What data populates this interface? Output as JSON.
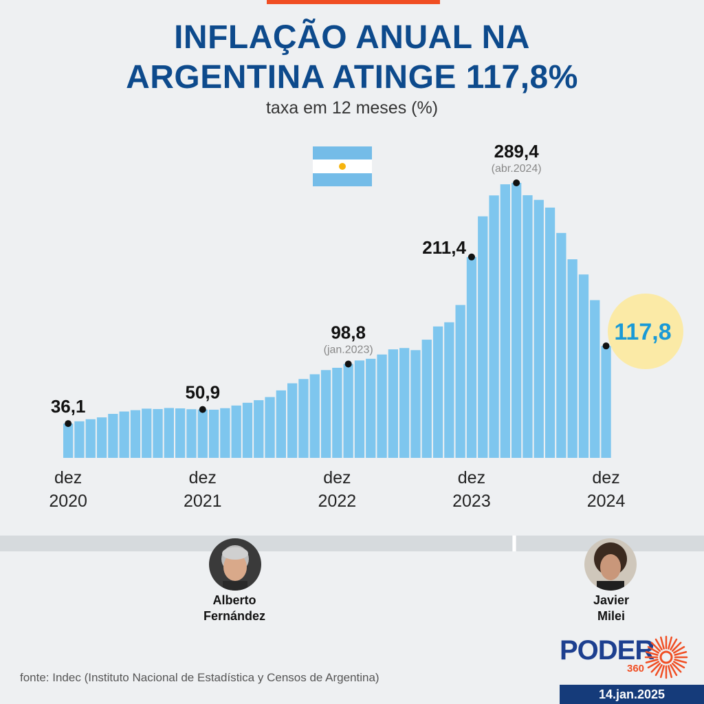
{
  "header": {
    "title_line1": "INFLAÇÃO ANUAL NA",
    "title_line2": "ARGENTINA ATINGE 117,8%",
    "subtitle": "taxa em 12 meses (%)"
  },
  "colors": {
    "bar": "#7ec6ee",
    "title": "#0d4a8c",
    "highlight_circle": "#fbeaa6",
    "highlight_text": "#1a9ad6",
    "accent": "#f04e23"
  },
  "chart_data": {
    "type": "bar",
    "ylim": [
      0,
      300
    ],
    "grid": false,
    "x_ticks": [
      {
        "line1": "dez",
        "line2": "2020",
        "index": 0
      },
      {
        "line1": "dez",
        "line2": "2021",
        "index": 12
      },
      {
        "line1": "dez",
        "line2": "2022",
        "index": 24
      },
      {
        "line1": "dez",
        "line2": "2023",
        "index": 36
      },
      {
        "line1": "dez",
        "line2": "2024",
        "index": 48
      }
    ],
    "categories": [
      "dez 2020",
      "jan 2021",
      "fev 2021",
      "mar 2021",
      "abr 2021",
      "mai 2021",
      "jun 2021",
      "jul 2021",
      "ago 2021",
      "set 2021",
      "out 2021",
      "nov 2021",
      "dez 2021",
      "jan 2022",
      "fev 2022",
      "mar 2022",
      "abr 2022",
      "mai 2022",
      "jun 2022",
      "jul 2022",
      "ago 2022",
      "set 2022",
      "out 2022",
      "nov 2022",
      "dez 2022",
      "jan 2023",
      "fev 2023",
      "mar 2023",
      "abr 2023",
      "mai 2023",
      "jun 2023",
      "jul 2023",
      "ago 2023",
      "set 2023",
      "out 2023",
      "nov 2023",
      "dez 2023",
      "jan 2024",
      "fev 2024",
      "mar 2024",
      "abr 2024",
      "mai 2024",
      "jun 2024",
      "jul 2024",
      "ago 2024",
      "set 2024",
      "out 2024",
      "nov 2024",
      "dez 2024"
    ],
    "values": [
      36.1,
      38.5,
      40.7,
      42.6,
      46.3,
      48.8,
      50.2,
      51.8,
      51.4,
      52.5,
      52.1,
      51.2,
      50.9,
      50.7,
      52.3,
      55.1,
      58.0,
      60.7,
      64.0,
      71.0,
      78.5,
      83.0,
      88.0,
      92.4,
      94.8,
      98.8,
      102.5,
      104.3,
      108.8,
      114.2,
      115.6,
      113.4,
      124.4,
      138.3,
      142.7,
      160.9,
      211.4,
      254.2,
      276.2,
      287.9,
      289.4,
      276.4,
      271.5,
      263.4,
      236.7,
      209.0,
      193.0,
      166.0,
      117.8
    ],
    "annotations": [
      {
        "index": 0,
        "label": "36,1",
        "sublabel": ""
      },
      {
        "index": 12,
        "label": "50,9",
        "sublabel": ""
      },
      {
        "index": 25,
        "label": "98,8",
        "sublabel": "(jan.2023)"
      },
      {
        "index": 36,
        "label": "211,4",
        "sublabel": ""
      },
      {
        "index": 40,
        "label": "289,4",
        "sublabel": "(abr.2024)"
      }
    ],
    "highlight": {
      "index": 48,
      "label": "117,8"
    }
  },
  "people": [
    {
      "line1": "Alberto",
      "line2": "Fernández"
    },
    {
      "line1": "Javier",
      "line2": "Milei"
    }
  ],
  "logo": {
    "brand": "PODER",
    "number": "360"
  },
  "footer": {
    "source": "fonte: Indec (Instituto Nacional de Estadística y Censos de Argentina)",
    "date": "14.jan.2025"
  }
}
